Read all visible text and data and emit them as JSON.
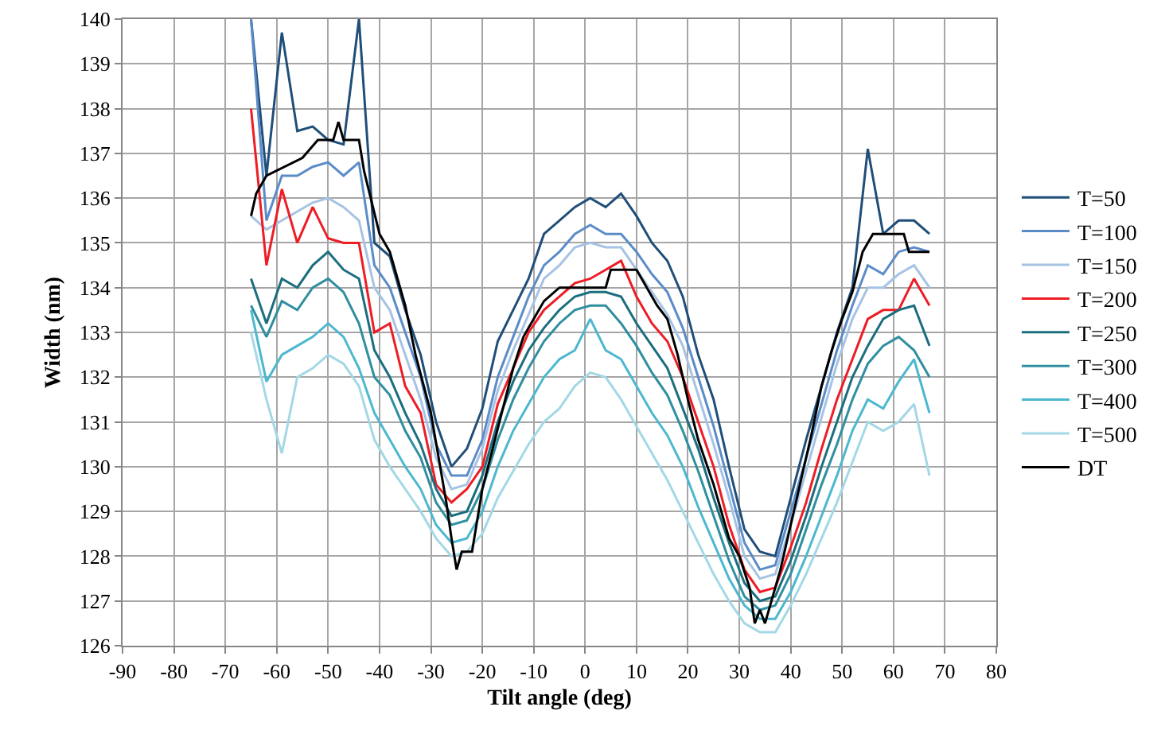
{
  "chart_data": {
    "type": "line",
    "xlabel": "Tilt angle (deg)",
    "ylabel": "Width (nm)",
    "x": [
      -65,
      -62,
      -59,
      -56,
      -53,
      -50,
      -47,
      -44,
      -41,
      -38,
      -35,
      -32,
      -29,
      -26,
      -23,
      -20,
      -17,
      -14,
      -11,
      -8,
      -5,
      -2,
      1,
      4,
      7,
      10,
      13,
      16,
      19,
      22,
      25,
      28,
      31,
      34,
      37,
      40,
      43,
      46,
      49,
      52,
      55,
      58,
      61,
      64,
      67
    ],
    "xlim": [
      -90,
      80
    ],
    "xticks": [
      -90,
      -80,
      -70,
      -60,
      -50,
      -40,
      -30,
      -20,
      -10,
      0,
      10,
      20,
      30,
      40,
      50,
      60,
      70,
      80
    ],
    "ylim": [
      126,
      140
    ],
    "yticks": [
      126,
      127,
      128,
      129,
      130,
      131,
      132,
      133,
      134,
      135,
      136,
      137,
      138,
      139,
      140
    ],
    "grid": true,
    "legend": "right",
    "line_style": "solid",
    "marker": "none",
    "series": [
      {
        "name": "T=50",
        "color": "#1f4e79",
        "values": [
          140,
          136.5,
          139.7,
          137.5,
          137.6,
          137.3,
          137.2,
          140,
          135.0,
          134.7,
          133.5,
          132.5,
          131.0,
          130.0,
          130.4,
          131.3,
          132.8,
          133.5,
          134.2,
          135.2,
          135.5,
          135.8,
          136.0,
          135.8,
          136.1,
          135.6,
          135.0,
          134.6,
          133.8,
          132.5,
          131.5,
          130.0,
          128.6,
          128.1,
          128.0,
          129.3,
          130.6,
          131.8,
          133.0,
          134.0,
          137.1,
          135.2,
          135.5,
          135.5,
          135.2
        ]
      },
      {
        "name": "T=100",
        "color": "#5b8cc8",
        "values": [
          140,
          135.5,
          136.5,
          136.5,
          136.7,
          136.8,
          136.5,
          136.8,
          134.5,
          134.0,
          133.0,
          132.0,
          130.5,
          129.8,
          129.8,
          130.6,
          132.0,
          132.9,
          133.8,
          134.5,
          134.8,
          135.2,
          135.4,
          135.2,
          135.2,
          134.8,
          134.3,
          133.9,
          133.1,
          132.0,
          130.9,
          129.6,
          128.3,
          127.7,
          127.8,
          129.0,
          130.2,
          131.4,
          132.6,
          133.6,
          134.5,
          134.3,
          134.8,
          134.9,
          134.8
        ]
      },
      {
        "name": "T=150",
        "color": "#a6c3e4",
        "values": [
          135.6,
          135.3,
          135.5,
          135.7,
          135.9,
          136.0,
          135.8,
          135.5,
          134.0,
          133.5,
          132.5,
          131.5,
          130.2,
          129.5,
          129.6,
          130.4,
          131.7,
          132.6,
          133.4,
          134.2,
          134.5,
          134.9,
          135.0,
          134.9,
          134.9,
          134.4,
          133.9,
          133.4,
          132.7,
          131.6,
          130.5,
          129.3,
          128.0,
          127.5,
          127.6,
          128.7,
          129.9,
          131.1,
          132.3,
          133.3,
          134.0,
          134.0,
          134.3,
          134.5,
          134.0
        ]
      },
      {
        "name": "T=200",
        "color": "#ee1c25",
        "values": [
          138.0,
          134.5,
          136.2,
          135.0,
          135.8,
          135.1,
          135.0,
          135.0,
          133.0,
          133.2,
          131.8,
          131.2,
          129.6,
          129.2,
          129.5,
          130.0,
          131.4,
          132.2,
          133.0,
          133.5,
          133.8,
          134.1,
          134.2,
          134.4,
          134.6,
          133.8,
          133.2,
          132.8,
          132.0,
          131.0,
          130.0,
          128.7,
          127.7,
          127.2,
          127.3,
          128.2,
          129.2,
          130.4,
          131.5,
          132.4,
          133.3,
          133.5,
          133.5,
          134.2,
          133.6
        ]
      },
      {
        "name": "T=250",
        "color": "#1b6e7e",
        "values": [
          134.2,
          133.2,
          134.2,
          134.0,
          134.5,
          134.8,
          134.4,
          134.2,
          132.6,
          132.0,
          131.2,
          130.5,
          129.5,
          128.9,
          129.0,
          129.8,
          131.0,
          131.9,
          132.6,
          133.1,
          133.5,
          133.8,
          133.9,
          133.9,
          133.8,
          133.2,
          132.7,
          132.2,
          131.3,
          130.4,
          129.3,
          128.3,
          127.4,
          127.0,
          127.1,
          127.9,
          128.9,
          130.0,
          131.0,
          132.0,
          132.7,
          133.3,
          133.5,
          133.6,
          132.7
        ]
      },
      {
        "name": "T=300",
        "color": "#2f8fa0",
        "values": [
          133.6,
          132.9,
          133.7,
          133.5,
          134.0,
          134.2,
          133.9,
          133.2,
          132.0,
          131.6,
          130.8,
          130.2,
          129.2,
          128.7,
          128.8,
          129.5,
          130.6,
          131.5,
          132.2,
          132.8,
          133.2,
          133.5,
          133.6,
          133.6,
          133.2,
          132.7,
          132.1,
          131.6,
          130.8,
          129.9,
          128.9,
          127.9,
          127.1,
          126.8,
          126.9,
          127.6,
          128.6,
          129.6,
          130.5,
          131.5,
          132.3,
          132.7,
          132.9,
          132.6,
          132.0
        ]
      },
      {
        "name": "T=400",
        "color": "#4bb8cf",
        "values": [
          133.5,
          131.9,
          132.5,
          132.7,
          132.9,
          133.2,
          132.9,
          132.2,
          131.2,
          130.6,
          130.0,
          129.5,
          128.7,
          128.3,
          128.4,
          129.0,
          130.0,
          130.8,
          131.4,
          132.0,
          132.4,
          132.6,
          133.3,
          132.6,
          132.4,
          131.8,
          131.2,
          130.7,
          130.0,
          129.1,
          128.3,
          127.5,
          126.9,
          126.6,
          126.6,
          127.2,
          128.0,
          128.9,
          129.8,
          130.8,
          131.5,
          131.3,
          131.9,
          132.4,
          131.2
        ]
      },
      {
        "name": "T=500",
        "color": "#a3d8e6",
        "values": [
          133.0,
          131.5,
          130.3,
          132.0,
          132.2,
          132.5,
          132.3,
          131.8,
          130.6,
          130.0,
          129.5,
          129.0,
          128.4,
          128.0,
          128.1,
          128.5,
          129.3,
          129.9,
          130.5,
          131.0,
          131.3,
          131.8,
          132.1,
          132.0,
          131.5,
          130.9,
          130.3,
          129.7,
          129.0,
          128.3,
          127.6,
          127.0,
          126.5,
          126.3,
          126.3,
          126.9,
          127.6,
          128.4,
          129.2,
          130.1,
          131.0,
          130.8,
          131.0,
          131.4,
          129.8
        ]
      },
      {
        "name": "DT",
        "color": "#000000",
        "x": [
          -65,
          -64,
          -62,
          -55,
          -52,
          -49,
          -48,
          -47,
          -44,
          -43,
          -40,
          -38,
          -35,
          -33,
          -30,
          -27,
          -26,
          -25,
          -24,
          -22,
          -20,
          -18,
          -16,
          -14,
          -12,
          -10,
          -8,
          -5,
          0,
          4,
          5,
          10,
          12,
          14,
          16,
          18,
          20,
          22,
          25,
          28,
          30,
          32,
          33,
          34,
          35,
          36,
          38,
          40,
          42,
          44,
          46,
          48,
          50,
          52,
          54,
          56,
          62,
          63,
          67
        ],
        "values": [
          135.6,
          136.1,
          136.5,
          136.9,
          137.3,
          137.3,
          137.7,
          137.3,
          137.3,
          136.6,
          135.2,
          134.8,
          133.6,
          132.5,
          131.2,
          129.2,
          128.4,
          127.7,
          128.1,
          128.1,
          129.5,
          130.4,
          131.3,
          132.2,
          132.9,
          133.3,
          133.7,
          134.0,
          134.0,
          134.0,
          134.4,
          134.4,
          134.0,
          133.6,
          133.3,
          132.5,
          131.5,
          130.6,
          129.6,
          128.4,
          128.0,
          127.3,
          126.5,
          126.8,
          126.5,
          126.9,
          127.7,
          128.7,
          129.7,
          130.7,
          131.8,
          132.6,
          133.3,
          133.9,
          134.8,
          135.2,
          135.2,
          134.8,
          134.8
        ]
      }
    ]
  }
}
